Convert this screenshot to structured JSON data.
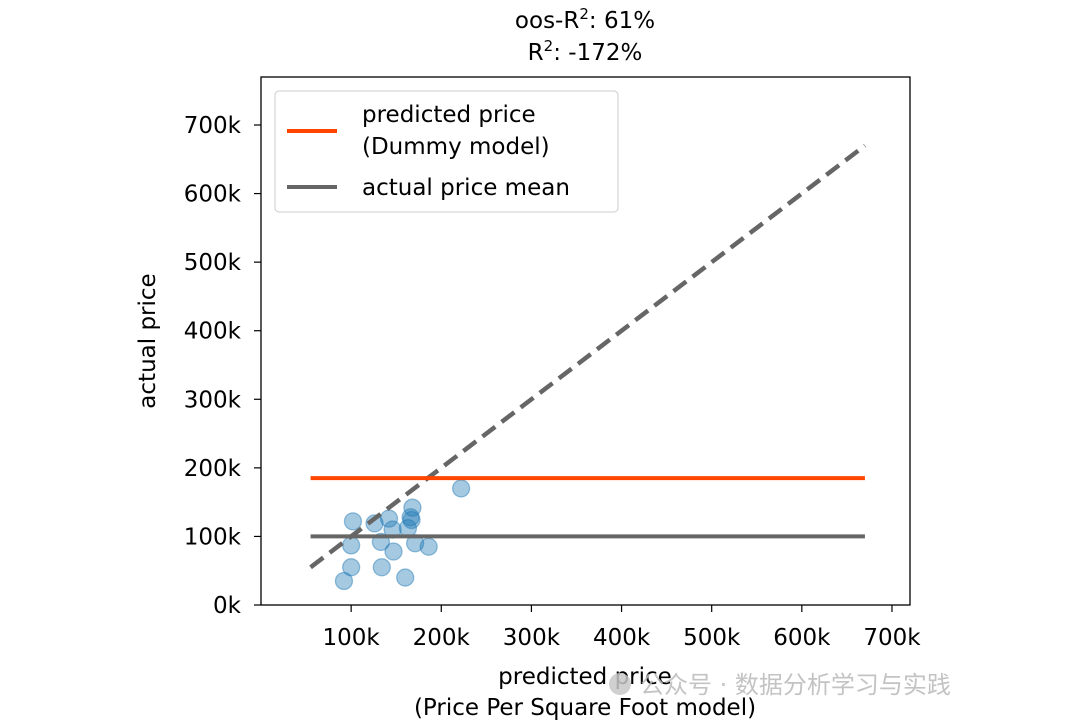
{
  "chart_data": {
    "type": "scatter",
    "title_line1_prefix": "oos-R",
    "title_line1_sup": "2",
    "title_line1_suffix": ": 61%",
    "title_line2_prefix": "R",
    "title_line2_sup": "2",
    "title_line2_suffix": ": -172%",
    "xlabel_line1": "predicted price",
    "xlabel_line2": "(Price Per Square Foot model)",
    "ylabel": "actual price",
    "xlim": [
      0,
      720000
    ],
    "ylim": [
      0,
      770000
    ],
    "x_ticks": [
      100000,
      200000,
      300000,
      400000,
      500000,
      600000,
      700000
    ],
    "x_tick_labels": [
      "100k",
      "200k",
      "300k",
      "400k",
      "500k",
      "600k",
      "700k"
    ],
    "y_ticks": [
      0,
      100000,
      200000,
      300000,
      400000,
      500000,
      600000,
      700000
    ],
    "y_tick_labels": [
      "0k",
      "100k",
      "200k",
      "300k",
      "400k",
      "500k",
      "600k",
      "700k"
    ],
    "points": [
      {
        "x": 92000,
        "y": 35000
      },
      {
        "x": 100000,
        "y": 55000
      },
      {
        "x": 100000,
        "y": 87000
      },
      {
        "x": 102000,
        "y": 122000
      },
      {
        "x": 126000,
        "y": 119000
      },
      {
        "x": 133000,
        "y": 92000
      },
      {
        "x": 134000,
        "y": 55000
      },
      {
        "x": 142000,
        "y": 126000
      },
      {
        "x": 146000,
        "y": 110000
      },
      {
        "x": 147000,
        "y": 78000
      },
      {
        "x": 160000,
        "y": 40000
      },
      {
        "x": 163000,
        "y": 112000
      },
      {
        "x": 166000,
        "y": 128000
      },
      {
        "x": 167000,
        "y": 124000
      },
      {
        "x": 168000,
        "y": 142000
      },
      {
        "x": 171000,
        "y": 90000
      },
      {
        "x": 186000,
        "y": 85000
      },
      {
        "x": 222000,
        "y": 170000
      }
    ],
    "point_color": "#1f77b4",
    "diagonal": {
      "x": [
        55000,
        670000
      ],
      "y": [
        55000,
        670000
      ],
      "color": "#666666",
      "style": "dashed"
    },
    "dummy_line": {
      "name": "predicted price\n(Dummy model)",
      "label_line1": "predicted price",
      "label_line2": "(Dummy model)",
      "y": 185000,
      "x": [
        55000,
        670000
      ],
      "color": "#ff4500"
    },
    "mean_line": {
      "name": "actual price mean",
      "label": "actual price mean",
      "y": 100000,
      "x": [
        55000,
        670000
      ],
      "color": "#666666"
    },
    "legend_position": "upper-left",
    "grid": false
  },
  "watermark": {
    "text": "公众号 · 数据分析学习与实践"
  }
}
